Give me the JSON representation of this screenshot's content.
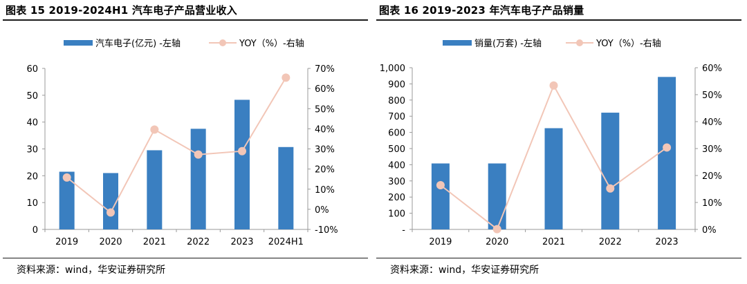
{
  "panels": [
    {
      "title": "图表 15 2019-2024H1 汽车电子产品营业收入",
      "source": "资料来源：wind，华安证券研究所",
      "colors": {
        "bar": "#3a7fc1",
        "line": "#f2c6b7",
        "marker": "#f2c6b7"
      }
    },
    {
      "title": "图表 16 2019-2023 年汽车电子产品销量",
      "source": "资料来源：wind，华安证券研究所",
      "colors": {
        "bar": "#3a7fc1",
        "line": "#f2c6b7",
        "marker": "#f2c6b7"
      }
    }
  ],
  "chart_data": [
    {
      "type": "bar",
      "categories": [
        "2019",
        "2020",
        "2021",
        "2022",
        "2023",
        "2024H1"
      ],
      "series": [
        {
          "name": "汽车电子(亿元) -左轴",
          "type": "bar",
          "axis": "left",
          "values": [
            21.5,
            21.0,
            29.5,
            37.5,
            48.3,
            30.7
          ]
        },
        {
          "name": "YOY（%）-右轴",
          "type": "line",
          "axis": "right",
          "values": [
            15.8,
            -1.6,
            39.6,
            27.2,
            28.9,
            65.4
          ]
        }
      ],
      "ylim_left": [
        0,
        60
      ],
      "yticks_left": [
        "0",
        "10",
        "20",
        "30",
        "40",
        "50",
        "60"
      ],
      "ylim_right": [
        -10,
        70
      ],
      "yticks_right": [
        "-10%",
        "0%",
        "10%",
        "20%",
        "30%",
        "40%",
        "50%",
        "60%",
        "70%"
      ],
      "legend_position": "top",
      "grid": false
    },
    {
      "type": "bar",
      "categories": [
        "2019",
        "2020",
        "2021",
        "2022",
        "2023"
      ],
      "series": [
        {
          "name": "销量(万套) -左轴",
          "type": "bar",
          "axis": "left",
          "values": [
            408,
            408,
            626,
            722,
            943
          ]
        },
        {
          "name": "YOY（%）-右轴",
          "type": "line",
          "axis": "right",
          "values": [
            16.4,
            0.1,
            53.4,
            15.2,
            30.4
          ]
        }
      ],
      "ylim_left": [
        0,
        1000
      ],
      "yticks_left": [
        "-",
        "100",
        "200",
        "300",
        "400",
        "500",
        "600",
        "700",
        "800",
        "900",
        "1,000"
      ],
      "ylim_right": [
        0,
        60
      ],
      "yticks_right": [
        "0%",
        "10%",
        "20%",
        "30%",
        "40%",
        "50%",
        "60%"
      ],
      "legend_position": "top",
      "grid": false
    }
  ]
}
